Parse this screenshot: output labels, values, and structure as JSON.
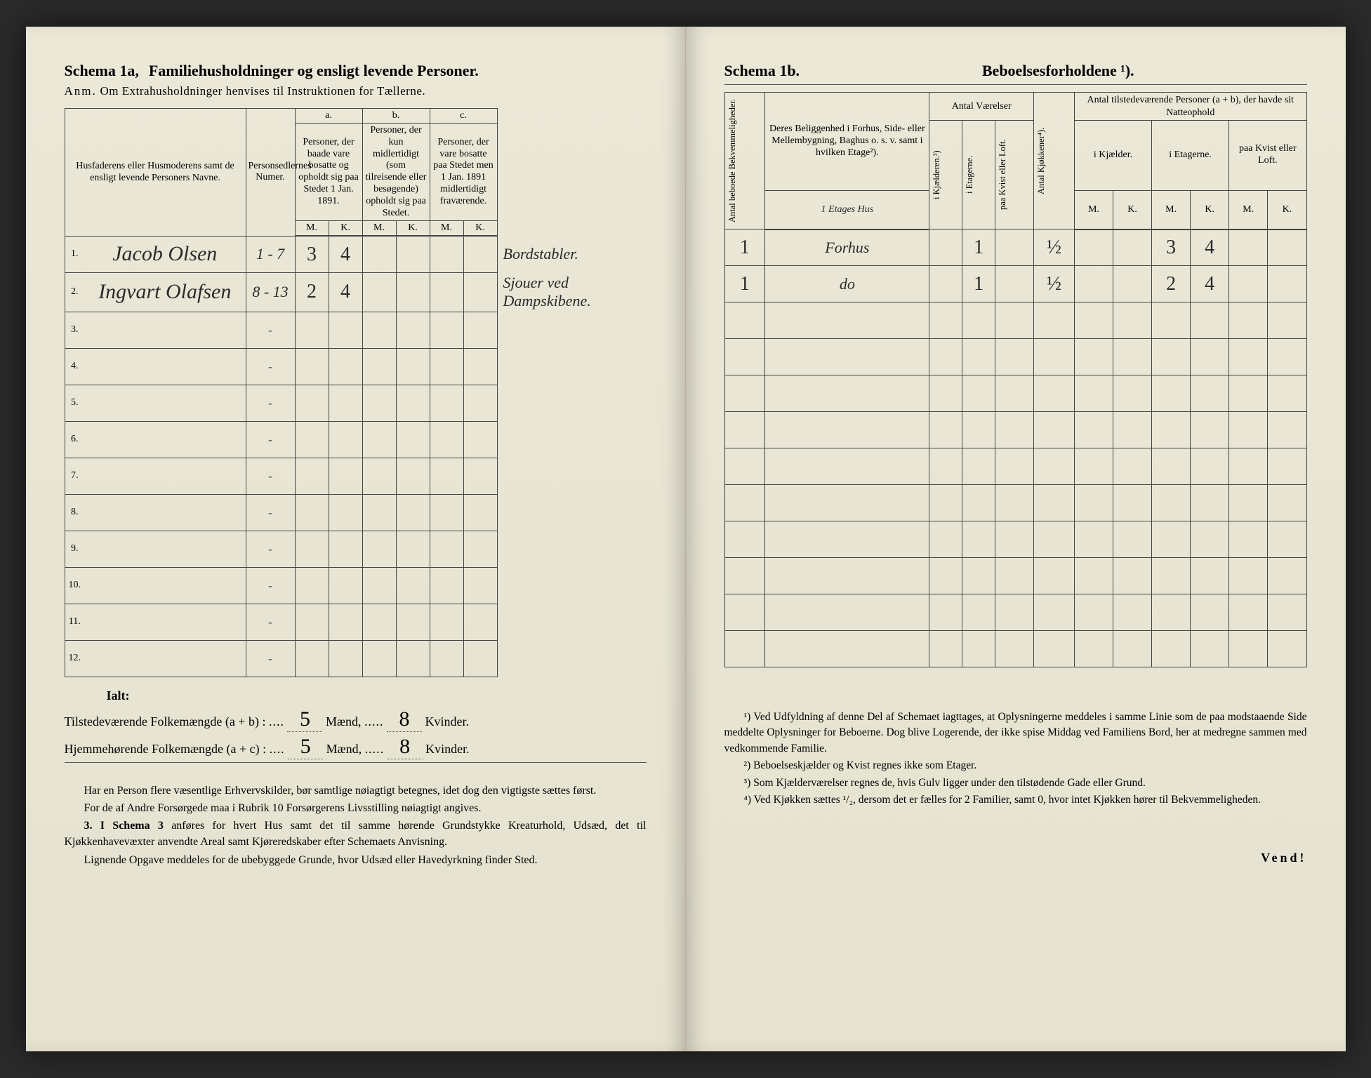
{
  "left": {
    "schema_label": "Schema 1a,",
    "schema_title": "Familiehusholdninger og ensligt levende Personer.",
    "sub_note_prefix": "Anm.",
    "sub_note": "Om Extrahusholdninger henvises til Instruktionen for Tællerne.",
    "headers": {
      "names": "Husfaderens eller Husmoderens samt de ensligt levende Personers Navne.",
      "seddel": "Personsedlernes Numer.",
      "col_a": "a.",
      "col_a_text": "Personer, der baade vare bosatte og opholdt sig paa Stedet 1 Jan. 1891.",
      "col_b": "b.",
      "col_b_text": "Personer, der kun midlertidigt (som tilreisende eller besøgende) opholdt sig paa Stedet.",
      "col_c": "c.",
      "col_c_text": "Personer, der vare bosatte paa Stedet men 1 Jan. 1891 midlertidigt fraværende.",
      "M": "M.",
      "K": "K."
    },
    "rows": [
      {
        "n": "1.",
        "name": "Jacob Olsen",
        "seddel": "1 - 7",
        "aM": "3",
        "aK": "4",
        "bM": "",
        "bK": "",
        "cM": "",
        "cK": "",
        "note": "Bordstabler."
      },
      {
        "n": "2.",
        "name": "Ingvart Olafsen",
        "seddel": "8 - 13",
        "aM": "2",
        "aK": "4",
        "bM": "",
        "bK": "",
        "cM": "",
        "cK": "",
        "note": "Sjouer ved Dampskibene."
      },
      {
        "n": "3.",
        "name": "",
        "seddel": "-",
        "aM": "",
        "aK": "",
        "bM": "",
        "bK": "",
        "cM": "",
        "cK": "",
        "note": ""
      },
      {
        "n": "4.",
        "name": "",
        "seddel": "-",
        "aM": "",
        "aK": "",
        "bM": "",
        "bK": "",
        "cM": "",
        "cK": "",
        "note": ""
      },
      {
        "n": "5.",
        "name": "",
        "seddel": "-",
        "aM": "",
        "aK": "",
        "bM": "",
        "bK": "",
        "cM": "",
        "cK": "",
        "note": ""
      },
      {
        "n": "6.",
        "name": "",
        "seddel": "-",
        "aM": "",
        "aK": "",
        "bM": "",
        "bK": "",
        "cM": "",
        "cK": "",
        "note": ""
      },
      {
        "n": "7.",
        "name": "",
        "seddel": "-",
        "aM": "",
        "aK": "",
        "bM": "",
        "bK": "",
        "cM": "",
        "cK": "",
        "note": ""
      },
      {
        "n": "8.",
        "name": "",
        "seddel": "-",
        "aM": "",
        "aK": "",
        "bM": "",
        "bK": "",
        "cM": "",
        "cK": "",
        "note": ""
      },
      {
        "n": "9.",
        "name": "",
        "seddel": "-",
        "aM": "",
        "aK": "",
        "bM": "",
        "bK": "",
        "cM": "",
        "cK": "",
        "note": ""
      },
      {
        "n": "10.",
        "name": "",
        "seddel": "-",
        "aM": "",
        "aK": "",
        "bM": "",
        "bK": "",
        "cM": "",
        "cK": "",
        "note": ""
      },
      {
        "n": "11.",
        "name": "",
        "seddel": "-",
        "aM": "",
        "aK": "",
        "bM": "",
        "bK": "",
        "cM": "",
        "cK": "",
        "note": ""
      },
      {
        "n": "12.",
        "name": "",
        "seddel": "-",
        "aM": "",
        "aK": "",
        "bM": "",
        "bK": "",
        "cM": "",
        "cK": "",
        "note": ""
      }
    ],
    "totals": {
      "ialt": "Ialt:",
      "line1_label": "Tilstedeværende Folkemængde (a + b) :",
      "line1_m": "5",
      "line1_m_unit": "Mænd,",
      "line1_k": "8",
      "line1_k_unit": "Kvinder.",
      "line2_label": "Hjemmehørende Folkemængde (a + c) :",
      "line2_m": "5",
      "line2_m_unit": "Mænd,",
      "line2_k": "8",
      "line2_k_unit": "Kvinder."
    },
    "instructions": {
      "p1": "Har en Person flere væsentlige Erhvervskilder, bør samtlige nøiagtigt betegnes, idet dog den vigtigste sættes først.",
      "p2": "For de af Andre Forsørgede maa i Rubrik 10 Forsørgerens Livsstilling nøiagtigt angives.",
      "p3_lead": "3. I Schema 3",
      "p3": "anføres for hvert Hus samt det til samme hørende Grundstykke Kreaturhold, Udsæd, det til Kjøkkenhavevæxter anvendte Areal samt Kjøreredskaber efter Schemaets Anvisning.",
      "p4": "Lignende Opgave meddeles for de ubebyggede Grunde, hvor Udsæd eller Havedyrkning finder Sted."
    }
  },
  "right": {
    "schema_label": "Schema 1b.",
    "schema_title": "Beboelsesforholdene ¹).",
    "headers": {
      "antal_bekv": "Antal beboede Bekvemmeligheder.",
      "beligg": "Deres Beliggenhed i Forhus, Side- eller Mellembygning, Baghus o. s. v. samt i hvilken Etage²).",
      "beligg_hand": "1 Etages Hus",
      "antal_vaer": "Antal Værelser",
      "i_kjael": "i Kjælderen.³)",
      "i_etag": "i Etagerne.",
      "paa_kvist": "paa Kvist eller Loft.",
      "antal_kjok": "Antal Kjøkkener⁴).",
      "antal_pers": "Antal tilstedeværende Personer (a + b), der havde sit Natteophold",
      "i_kjael2": "i Kjælder.",
      "i_etag2": "i Etagerne.",
      "paa_kvist2": "paa Kvist eller Loft.",
      "M": "M.",
      "K": "K."
    },
    "rows": [
      {
        "bekv": "1",
        "beligg": "Forhus",
        "kjael": "",
        "etag": "1",
        "kvist": "",
        "kjok": "½",
        "km": "",
        "kk": "",
        "em": "3",
        "ek": "4",
        "lm": "",
        "lk": ""
      },
      {
        "bekv": "1",
        "beligg": "do",
        "kjael": "",
        "etag": "1",
        "kvist": "",
        "kjok": "½",
        "km": "",
        "kk": "",
        "em": "2",
        "ek": "4",
        "lm": "",
        "lk": ""
      },
      {
        "bekv": "",
        "beligg": "",
        "kjael": "",
        "etag": "",
        "kvist": "",
        "kjok": "",
        "km": "",
        "kk": "",
        "em": "",
        "ek": "",
        "lm": "",
        "lk": ""
      },
      {
        "bekv": "",
        "beligg": "",
        "kjael": "",
        "etag": "",
        "kvist": "",
        "kjok": "",
        "km": "",
        "kk": "",
        "em": "",
        "ek": "",
        "lm": "",
        "lk": ""
      },
      {
        "bekv": "",
        "beligg": "",
        "kjael": "",
        "etag": "",
        "kvist": "",
        "kjok": "",
        "km": "",
        "kk": "",
        "em": "",
        "ek": "",
        "lm": "",
        "lk": ""
      },
      {
        "bekv": "",
        "beligg": "",
        "kjael": "",
        "etag": "",
        "kvist": "",
        "kjok": "",
        "km": "",
        "kk": "",
        "em": "",
        "ek": "",
        "lm": "",
        "lk": ""
      },
      {
        "bekv": "",
        "beligg": "",
        "kjael": "",
        "etag": "",
        "kvist": "",
        "kjok": "",
        "km": "",
        "kk": "",
        "em": "",
        "ek": "",
        "lm": "",
        "lk": ""
      },
      {
        "bekv": "",
        "beligg": "",
        "kjael": "",
        "etag": "",
        "kvist": "",
        "kjok": "",
        "km": "",
        "kk": "",
        "em": "",
        "ek": "",
        "lm": "",
        "lk": ""
      },
      {
        "bekv": "",
        "beligg": "",
        "kjael": "",
        "etag": "",
        "kvist": "",
        "kjok": "",
        "km": "",
        "kk": "",
        "em": "",
        "ek": "",
        "lm": "",
        "lk": ""
      },
      {
        "bekv": "",
        "beligg": "",
        "kjael": "",
        "etag": "",
        "kvist": "",
        "kjok": "",
        "km": "",
        "kk": "",
        "em": "",
        "ek": "",
        "lm": "",
        "lk": ""
      },
      {
        "bekv": "",
        "beligg": "",
        "kjael": "",
        "etag": "",
        "kvist": "",
        "kjok": "",
        "km": "",
        "kk": "",
        "em": "",
        "ek": "",
        "lm": "",
        "lk": ""
      },
      {
        "bekv": "",
        "beligg": "",
        "kjael": "",
        "etag": "",
        "kvist": "",
        "kjok": "",
        "km": "",
        "kk": "",
        "em": "",
        "ek": "",
        "lm": "",
        "lk": ""
      }
    ],
    "footnotes": {
      "f1": "¹) Ved Udfyldning af denne Del af Schemaet iagttages, at Oplysningerne meddeles i samme Linie som de paa modstaaende Side meddelte Oplysninger for Beboerne. Dog blive Logerende, der ikke spise Middag ved Familiens Bord, her at medregne sammen med vedkommende Familie.",
      "f2": "²) Beboelseskjælder og Kvist regnes ikke som Etager.",
      "f3": "³) Som Kjælderværelser regnes de, hvis Gulv ligger under den tilstødende Gade eller Grund.",
      "f4": "⁴) Ved Kjøkken sættes ¹/₂, dersom det er fælles for 2 Familier, samt 0, hvor intet Kjøkken hører til Bekvemmeligheden."
    },
    "vend": "Vend!"
  }
}
